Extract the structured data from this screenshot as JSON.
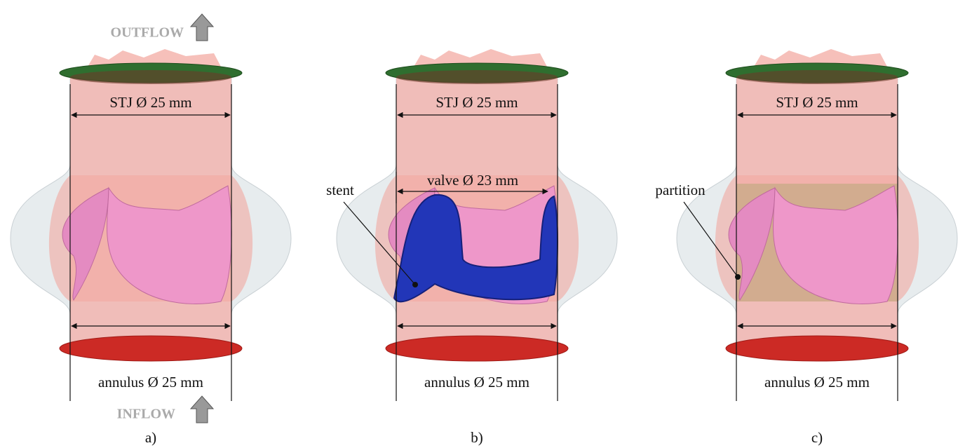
{
  "flow": {
    "outflow": "OUTFLOW",
    "inflow": "INFLOW"
  },
  "panels": [
    {
      "caption": "a)",
      "stj": "STJ Ø 25 mm",
      "annulus": "annulus Ø 25 mm"
    },
    {
      "caption": "b)",
      "stj": "STJ Ø 25 mm",
      "valve": "valve Ø 23 mm",
      "callout": "stent",
      "annulus": "annulus Ø 25 mm"
    },
    {
      "caption": "c)",
      "stj": "STJ Ø 25 mm",
      "callout": "partition",
      "annulus": "annulus Ø 25 mm"
    }
  ]
}
